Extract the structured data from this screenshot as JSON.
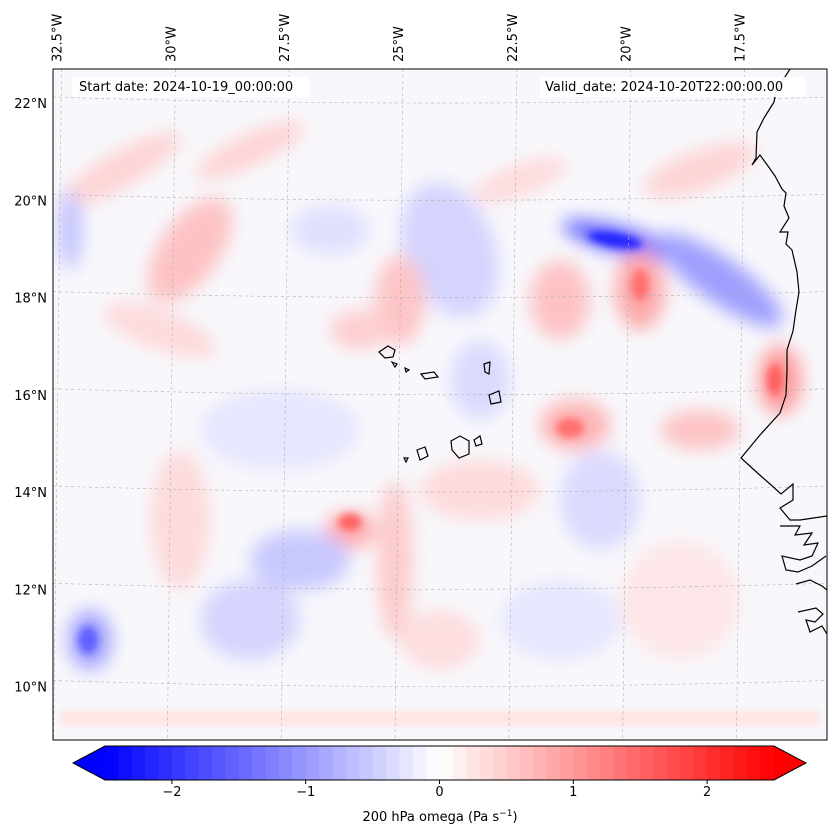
{
  "chart_data": {
    "type": "heatmap",
    "title": "",
    "start_date_label": "Start date: 2024-10-19_00:00:00",
    "valid_date_label": "Valid_date: 2024-10-20T22:00:00.00",
    "lon_ticks": [
      "32.5°W",
      "30°W",
      "27.5°W",
      "25°W",
      "22.5°W",
      "20°W",
      "17.5°W"
    ],
    "lon_values": [
      -32.5,
      -30,
      -27.5,
      -25,
      -22.5,
      -20,
      -17.5
    ],
    "lat_ticks": [
      "22°N",
      "20°N",
      "18°N",
      "16°N",
      "14°N",
      "12°N",
      "10°N"
    ],
    "lat_values": [
      22,
      20,
      18,
      16,
      14,
      12,
      10
    ],
    "lon_range": [
      -32.6,
      -15.6
    ],
    "lat_range": [
      8.9,
      22.7
    ],
    "colorbar": {
      "label_prefix": "200 hPa omega (Pa s",
      "label_exponent": "−1",
      "label_suffix": ")",
      "ticks": [
        "−2",
        "−1",
        "0",
        "1",
        "2"
      ],
      "tick_values": [
        -2,
        -1,
        0,
        1,
        2
      ],
      "range": [
        -2.5,
        2.5
      ],
      "extend": "both",
      "min_color": "#0000ff",
      "mid_color": "#ffffff",
      "max_color": "#ff0000"
    },
    "features": [
      {
        "name": "strong ascent band (blue)",
        "lon": -19.8,
        "lat": 19.2,
        "value": -2.0
      },
      {
        "name": "descent NW of Senegal (red)",
        "lon": -20.0,
        "lat": 18.3,
        "value": 1.2
      },
      {
        "name": "descent near Cape Verde (red)",
        "lon": -21.0,
        "lat": 15.0,
        "value": 1.0
      },
      {
        "name": "descent coast (red)",
        "lon": -16.2,
        "lat": 16.3,
        "value": 1.3
      },
      {
        "name": "descent west (red)",
        "lon": -28.5,
        "lat": 19.0,
        "value": 1.0
      },
      {
        "name": "ascent south-west (blue)",
        "lon": -32.0,
        "lat": 10.9,
        "value": -1.2
      },
      {
        "name": "descent central (red)",
        "lon": -25.8,
        "lat": 13.5,
        "value": 1.1
      },
      {
        "name": "ascent south-central (blue)",
        "lon": -27.5,
        "lat": 12.8,
        "value": -0.8
      }
    ]
  },
  "colors": {
    "coastline": "#000000",
    "gridline": "#b0b0b0",
    "frame": "#000000"
  }
}
